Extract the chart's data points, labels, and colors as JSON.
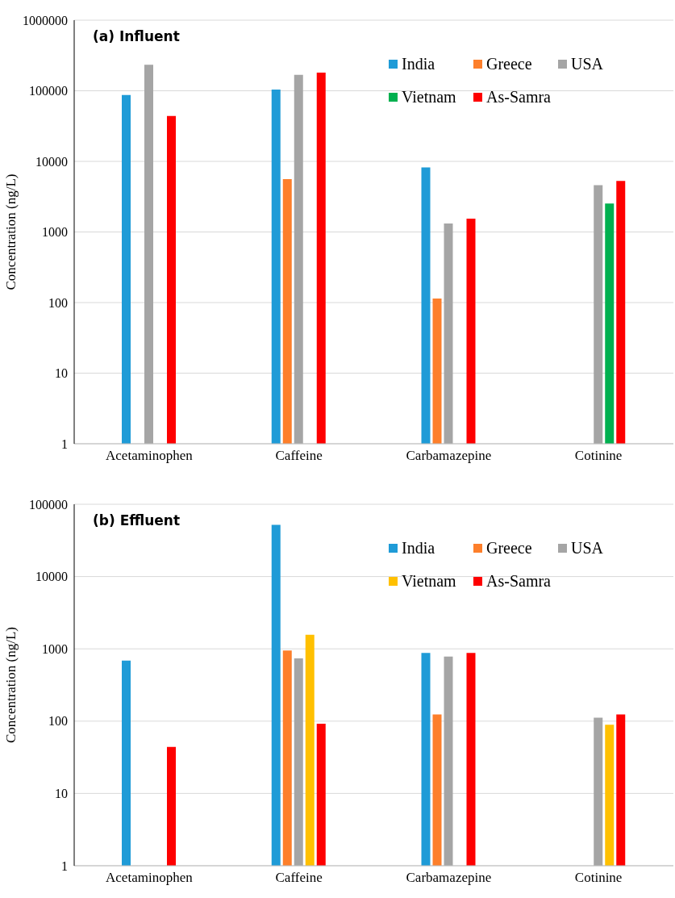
{
  "chart_data": [
    {
      "type": "bar",
      "title": "(a) Influent",
      "ylabel": "Concentration (ng/L)",
      "categories": [
        "Acetaminophen",
        "Caffeine",
        "Carbamazepine",
        "Cotinine"
      ],
      "series": [
        {
          "name": "India",
          "color": "#1f9bd7",
          "values": [
            87000,
            104000,
            8200,
            null
          ]
        },
        {
          "name": "Greece",
          "color": "#fd7f2b",
          "values": [
            null,
            5600,
            114,
            null
          ]
        },
        {
          "name": "USA",
          "color": "#a5a5a5",
          "values": [
            234000,
            168000,
            1320,
            4600
          ]
        },
        {
          "name": "Vietnam",
          "color": "#00b04f",
          "values": [
            null,
            null,
            null,
            2530
          ]
        },
        {
          "name": "As-Samra",
          "color": "#fe0000",
          "values": [
            44000,
            181000,
            1540,
            5300
          ]
        }
      ],
      "ylim": [
        1,
        1000000
      ],
      "yticks": [
        1,
        10,
        100,
        1000,
        10000,
        100000,
        1000000
      ],
      "log": true,
      "grid": "y",
      "legend": "top right"
    },
    {
      "type": "bar",
      "title": "(b) Effluent",
      "ylabel": "Concentration (ng/L)",
      "categories": [
        "Acetaminophen",
        "Caffeine",
        "Carbamazepine",
        "Cotinine"
      ],
      "series": [
        {
          "name": "India",
          "color": "#1f9bd7",
          "values": [
            690,
            52000,
            880,
            null
          ]
        },
        {
          "name": "Greece",
          "color": "#fd7f2b",
          "values": [
            null,
            950,
            124,
            null
          ]
        },
        {
          "name": "USA",
          "color": "#a5a5a5",
          "values": [
            null,
            740,
            780,
            112
          ]
        },
        {
          "name": "Vietnam",
          "color": "#ffc000",
          "values": [
            null,
            1570,
            null,
            89
          ]
        },
        {
          "name": "As-Samra",
          "color": "#fe0000",
          "values": [
            44,
            92,
            880,
            124
          ]
        }
      ],
      "ylim": [
        1,
        100000
      ],
      "yticks": [
        1,
        10,
        100,
        1000,
        10000,
        100000
      ],
      "log": true,
      "grid": "y",
      "legend": "top right"
    }
  ]
}
